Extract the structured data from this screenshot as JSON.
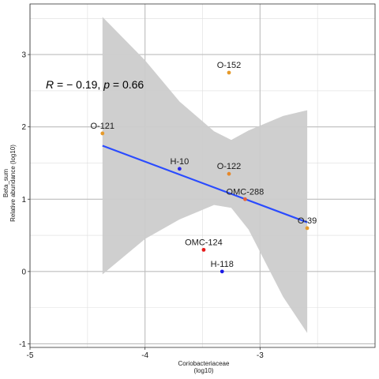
{
  "chart_data": {
    "type": "scatter",
    "title": "",
    "xlabel": [
      "Coriobacteriaceae",
      "(log10)"
    ],
    "ylabel": [
      "Beta_sum",
      "Relative abundance (log10)"
    ],
    "xlim": [
      -5.0,
      -2.0
    ],
    "ylim": [
      -1.05,
      3.7
    ],
    "x_ticks": [
      -5,
      -4,
      -3
    ],
    "y_ticks": [
      -1,
      0,
      1,
      2,
      3
    ],
    "grid": true,
    "points": [
      {
        "label": "O-152",
        "x": -3.27,
        "y": 2.75,
        "color": "#e69a2a"
      },
      {
        "label": "O-121",
        "x": -4.37,
        "y": 1.91,
        "color": "#e69a2a"
      },
      {
        "label": "H-10",
        "x": -3.7,
        "y": 1.42,
        "color": "#2a2ae6"
      },
      {
        "label": "O-122",
        "x": -3.27,
        "y": 1.35,
        "color": "#e6882a"
      },
      {
        "label": "OMC-288",
        "x": -3.13,
        "y": 1.0,
        "color": "#e8603a"
      },
      {
        "label": "O-39",
        "x": -2.59,
        "y": 0.6,
        "color": "#e69a2a"
      },
      {
        "label": "OMC-124",
        "x": -3.49,
        "y": 0.3,
        "color": "#e61a1a"
      },
      {
        "label": "H-118",
        "x": -3.33,
        "y": 0.0,
        "color": "#1a1ae6"
      }
    ],
    "regression": {
      "x": [
        -4.37,
        -2.59
      ],
      "y": [
        1.74,
        0.68
      ],
      "color": "#2a4bff",
      "confidence_band": {
        "x": [
          -4.37,
          -4.0,
          -3.7,
          -3.4,
          -3.25,
          -3.1,
          -2.8,
          -2.59
        ],
        "upper": [
          3.52,
          2.92,
          2.35,
          1.94,
          1.82,
          1.95,
          2.15,
          2.23
        ],
        "lower": [
          -0.04,
          0.45,
          0.72,
          0.92,
          0.88,
          0.58,
          -0.35,
          -0.85
        ],
        "color": "#cccccc"
      }
    },
    "annotation": {
      "r_label": "R",
      "r_text": " = − 0.19, ",
      "p_label": "p",
      "p_text": " = 0.66"
    }
  }
}
